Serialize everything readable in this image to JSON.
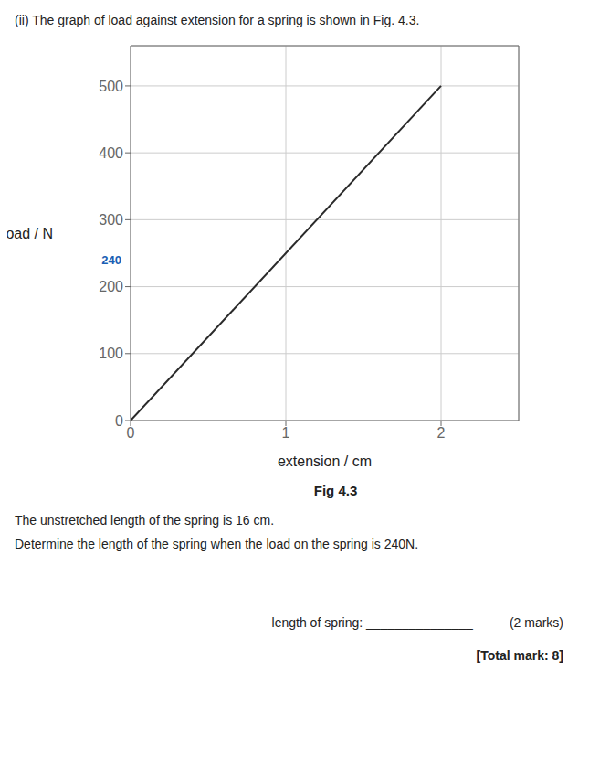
{
  "chart_data": {
    "type": "line",
    "title": "(ii) The graph of load against extension for a spring is shown in Fig. 4.3.",
    "xlabel": "extension / cm",
    "ylabel": "load / N",
    "x": [
      0,
      2.0
    ],
    "values": [
      0,
      500
    ],
    "color": "#2a2a2a",
    "xlim": [
      0,
      2.5
    ],
    "ylim": [
      0,
      560
    ],
    "xticks": [
      0,
      1,
      2
    ],
    "yticks": [
      0,
      100,
      200,
      300,
      400,
      500
    ],
    "grid": true,
    "annotations": [
      {
        "text": "240",
        "y": 240,
        "color": "#1a5fb4"
      },
      {
        "text": "Fig 4.3"
      },
      {
        "text": "The unstretched length of the spring is 16 cm."
      },
      {
        "text": "Determine the length of the spring when the load on the spring is 240N."
      },
      {
        "text": "length of spring: _______________"
      },
      {
        "text": "(2 marks)"
      },
      {
        "text": "[Total mark: 8]"
      }
    ]
  }
}
